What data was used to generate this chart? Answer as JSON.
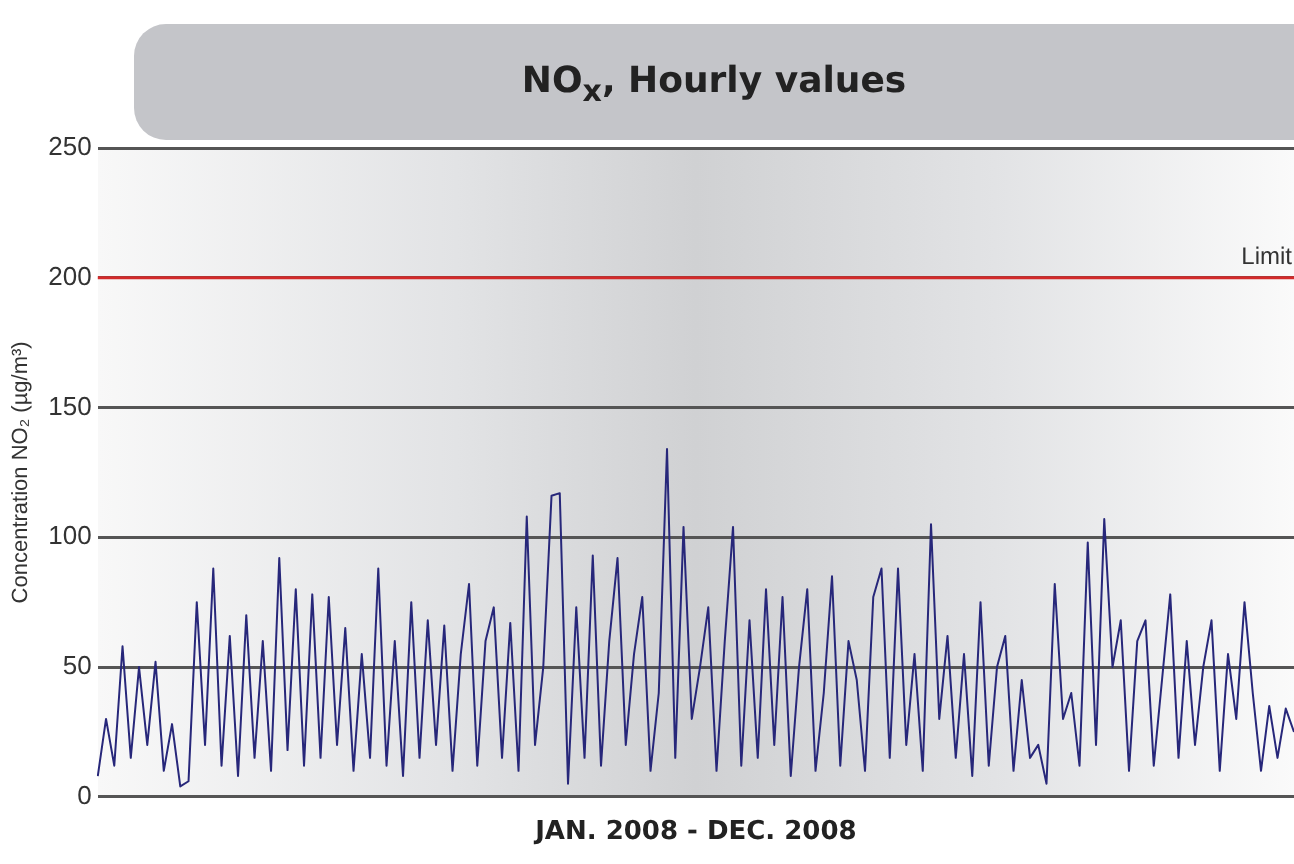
{
  "chart_data": {
    "type": "line",
    "title": "NO$_{x}$, Hourly values",
    "xlabel": "JAN. 2008 - DEC. 2008",
    "ylabel": "Concentration NO₂ (µg/m³)",
    "categories": [
      null,
      null,
      null,
      null,
      null,
      null,
      null,
      null,
      null,
      null,
      null,
      null,
      null,
      null,
      null,
      null,
      null,
      null,
      null,
      null,
      null,
      null,
      null,
      null,
      null,
      null,
      null,
      null,
      null,
      null,
      null,
      null,
      null,
      null,
      null,
      null,
      null,
      null,
      null,
      null,
      null,
      null,
      null,
      null,
      null,
      null,
      null,
      null,
      null,
      null,
      null,
      null,
      null,
      null,
      null,
      null,
      null,
      null,
      null,
      null,
      null,
      null,
      null,
      null,
      null,
      null,
      null,
      null,
      null,
      null,
      null,
      null,
      null,
      null,
      null,
      null,
      null,
      null,
      null,
      null,
      null,
      null,
      null,
      null,
      null,
      null,
      null,
      null,
      null,
      null,
      null,
      null,
      null,
      null,
      null,
      null,
      null,
      null,
      null,
      null,
      null,
      null,
      null,
      null,
      null,
      null,
      null,
      null,
      null,
      null,
      null,
      null,
      null,
      null,
      null,
      null,
      null,
      null,
      null,
      null,
      null,
      null,
      null,
      null,
      null,
      null,
      null,
      null,
      null,
      null,
      null,
      null,
      null,
      null,
      null,
      null,
      null,
      null,
      null,
      null,
      null,
      null,
      null,
      null,
      null,
      null
    ],
    "series": [
      {
        "color": "#27277a",
        "values": [
          8,
          30,
          12,
          58,
          15,
          50,
          20,
          52,
          10,
          28,
          4,
          6,
          75,
          20,
          88,
          12,
          62,
          8,
          70,
          15,
          60,
          10,
          92,
          18,
          80,
          12,
          78,
          15,
          77,
          20,
          65,
          10,
          55,
          15,
          88,
          12,
          60,
          8,
          75,
          15,
          68,
          20,
          66,
          10,
          55,
          82,
          12,
          60,
          73,
          15,
          67,
          10,
          108,
          20,
          50,
          116,
          117,
          5,
          73,
          15,
          93,
          12,
          60,
          92,
          20,
          55,
          77,
          10,
          40,
          134,
          15,
          104,
          30,
          50,
          73,
          10,
          60,
          104,
          12,
          68,
          15,
          80,
          20,
          77,
          8,
          50,
          80,
          10,
          40,
          85,
          12,
          60,
          45,
          10,
          77,
          88,
          15,
          88,
          20,
          55,
          10,
          105,
          30,
          62,
          15,
          55,
          8,
          75,
          12,
          50,
          62,
          10,
          45,
          15,
          20,
          5,
          82,
          30,
          40,
          12,
          98,
          20,
          107,
          50,
          68,
          10,
          60,
          68,
          12,
          45,
          78,
          15,
          60,
          20,
          50,
          68,
          10,
          55,
          30,
          75,
          40,
          10,
          35,
          15,
          34,
          25
        ]
      }
    ],
    "ylim": [
      0,
      250
    ],
    "yticks": [
      0,
      50,
      100,
      150,
      200,
      250
    ],
    "grid": "y",
    "legend": false,
    "marker": "none",
    "line_style": "solid",
    "ref_lines": [
      {
        "axis": "y",
        "value": 200,
        "label": "Limit",
        "color": "#d42a2a"
      }
    ]
  }
}
